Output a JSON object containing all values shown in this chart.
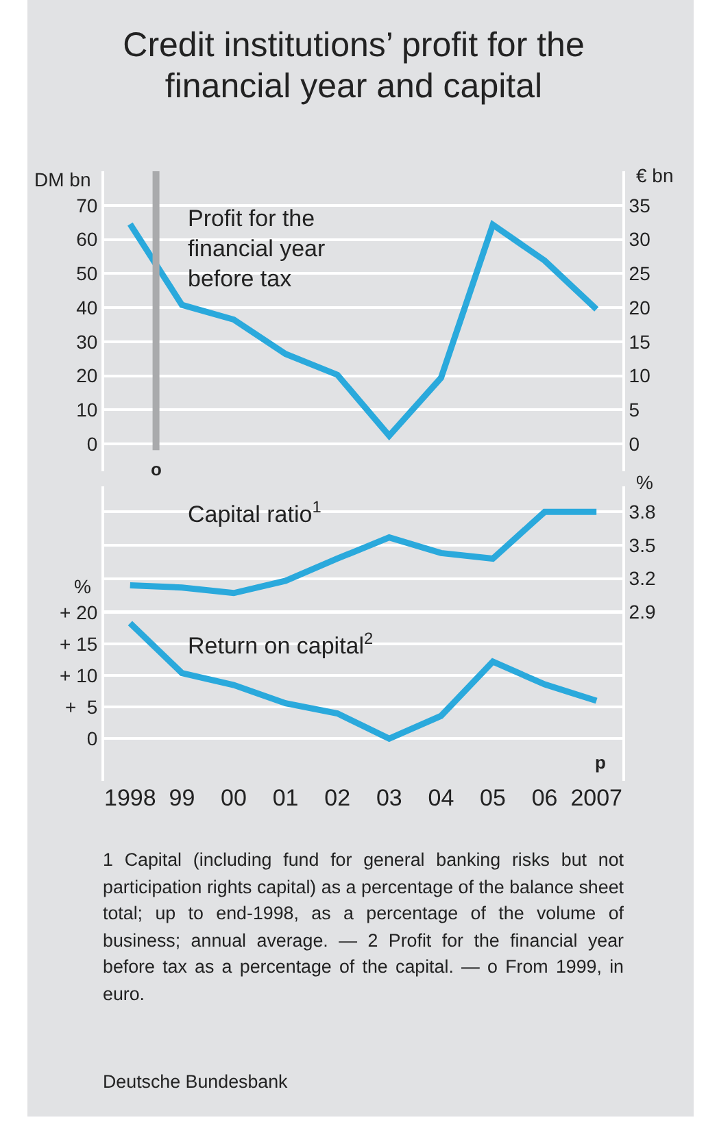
{
  "chart_data": [
    {
      "type": "line",
      "title": "Credit institutions’ profit for the financial year and capital",
      "ylabel": "DM bn",
      "y2label": "€ bn",
      "x": [
        1998,
        1999,
        2000,
        2001,
        2002,
        2003,
        2004,
        2005,
        2006,
        2007
      ],
      "series": [
        {
          "name": "Profit for the financial year before tax",
          "color": "#2aa9dc",
          "values": [
            64.5,
            40.8,
            36.5,
            26.4,
            20.3,
            2.4,
            19.4,
            64.3,
            53.8,
            39.5
          ]
        }
      ],
      "xlim": [
        1997.5,
        2007.5
      ],
      "ylim": [
        -8,
        80
      ],
      "yticks": [
        0,
        10,
        20,
        30,
        40,
        50,
        60,
        70
      ],
      "y2lim": [
        -4,
        40
      ],
      "y2ticks": [
        0,
        5,
        10,
        15,
        20,
        25,
        30,
        35
      ],
      "ref_lines": [
        {
          "axis": "x",
          "value": 1998.5,
          "label": "o",
          "color": "#a9aaac"
        }
      ],
      "grid": "y",
      "legend": false,
      "tick_labels": "y"
    },
    {
      "type": "line",
      "ylabel": "%",
      "y2label": "%",
      "x": [
        1998,
        1999,
        2000,
        2001,
        2002,
        2003,
        2004,
        2005,
        2006,
        2007
      ],
      "series": [
        {
          "name": "Capital ratio$^{1}$",
          "color": "#2aa9dc",
          "axis": "y2",
          "values": [
            3.14,
            3.12,
            3.07,
            3.18,
            3.38,
            3.57,
            3.43,
            3.38,
            3.8,
            3.8
          ]
        },
        {
          "name": "Return on capital$^{2}$",
          "color": "#2aa9dc",
          "values": [
            18.3,
            10.4,
            8.5,
            5.6,
            4.0,
            0,
            3.6,
            12.2,
            8.6,
            6.0
          ]
        }
      ],
      "xlim": [
        1997.5,
        2007.5
      ],
      "xticks": [
        {
          "value": 1998,
          "label": "1998"
        },
        {
          "value": 1999,
          "label": "99"
        },
        {
          "value": 2000,
          "label": "00"
        },
        {
          "value": 2001,
          "label": "01"
        },
        {
          "value": 2002,
          "label": "02"
        },
        {
          "value": 2003,
          "label": "03"
        },
        {
          "value": 2004,
          "label": "04"
        },
        {
          "value": 2005,
          "label": "05"
        },
        {
          "value": 2006,
          "label": "06"
        },
        {
          "value": 2007,
          "label": "2007"
        }
      ],
      "ylim": [
        -6.7,
        40
      ],
      "yticks": [
        0,
        {
          "value": 5,
          "label": "+  5"
        },
        {
          "value": 10,
          "label": "+ 10"
        },
        {
          "value": 15,
          "label": "+ 15"
        },
        {
          "value": 20,
          "label": "+ 20"
        }
      ],
      "y2lim": [
        1.38,
        4.03
      ],
      "y2ticks": [
        2.9,
        3.2,
        3.5,
        3.8
      ],
      "annotations": [
        "p",
        "1 Capital (including fund for general banking risks but not participation rights capital) as a percentage of the balance sheet total; up to end-1998, as a percentage of the volume of business; annual average. — 2 Profit for the financial year before tax as a percentage of the capital. — o From 1999, in euro.",
        "Deutsche Bundesbank"
      ],
      "grid": "y",
      "legend": false
    }
  ]
}
